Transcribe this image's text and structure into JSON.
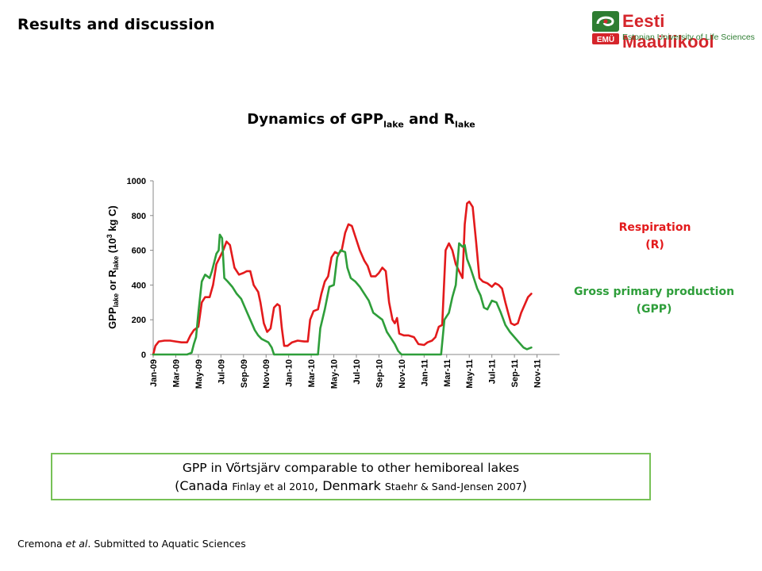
{
  "header": {
    "title": "Results and discussion"
  },
  "logo": {
    "name": "Eesti Maaülikool",
    "subtitle": "Estonian University of Life Sciences",
    "badge": "EMÜ"
  },
  "chart_title": {
    "main": "Dynamics of GPP",
    "sub1": "lake",
    "mid": " and R",
    "sub2": "lake"
  },
  "colors": {
    "respiration": "#e31a1c",
    "gpp": "#2e9e3a",
    "box_border": "#77c157"
  },
  "legend": {
    "respiration_line1": "Respiration",
    "respiration_line2": "(R)",
    "gpp_line1": "Gross primary production",
    "gpp_line2": "(GPP)"
  },
  "note": {
    "line1": "GPP in Võrtsjärv comparable to other hemiboreal lakes",
    "open": "(Canada ",
    "ref1": "Finlay et al 2010",
    "mid": ", Denmark ",
    "ref2": "Staehr & Sand-Jensen 2007",
    "close": ")"
  },
  "footer": {
    "prefix": "Cremona ",
    "etal": "et al",
    "suffix": ". Submitted to Aquatic Sciences"
  },
  "chart_data": {
    "type": "line",
    "title": "Dynamics of GPPlake and Rlake",
    "ylabel": "GPPlake or Rlake (10³ kg C)",
    "ylim": [
      0,
      1000
    ],
    "yticks": [
      0,
      200,
      400,
      600,
      800,
      1000
    ],
    "xlim": [
      0,
      36
    ],
    "xticks": [
      {
        "x": 0,
        "label": "Jan-09"
      },
      {
        "x": 2,
        "label": "Mar-09"
      },
      {
        "x": 4,
        "label": "May-09"
      },
      {
        "x": 6,
        "label": "Jul-09"
      },
      {
        "x": 8,
        "label": "Sep-09"
      },
      {
        "x": 10,
        "label": "Nov-09"
      },
      {
        "x": 12,
        "label": "Jan-10"
      },
      {
        "x": 14,
        "label": "Mar-10"
      },
      {
        "x": 16,
        "label": "May-10"
      },
      {
        "x": 18,
        "label": "Jul-10"
      },
      {
        "x": 20,
        "label": "Sep-10"
      },
      {
        "x": 22,
        "label": "Nov-10"
      },
      {
        "x": 24,
        "label": "Jan-11"
      },
      {
        "x": 26,
        "label": "Mar-11"
      },
      {
        "x": 28,
        "label": "May-11"
      },
      {
        "x": 30,
        "label": "Jul-11"
      },
      {
        "x": 32,
        "label": "Sep-11"
      },
      {
        "x": 34,
        "label": "Nov-11"
      }
    ],
    "series": [
      {
        "name": "Respiration (R)",
        "color": "#e31a1c",
        "points": [
          [
            0.0,
            0
          ],
          [
            0.2,
            50
          ],
          [
            0.5,
            75
          ],
          [
            1.0,
            80
          ],
          [
            1.5,
            80
          ],
          [
            2.0,
            75
          ],
          [
            2.5,
            70
          ],
          [
            3.0,
            70
          ],
          [
            3.3,
            110
          ],
          [
            3.6,
            140
          ],
          [
            4.0,
            160
          ],
          [
            4.3,
            300
          ],
          [
            4.6,
            330
          ],
          [
            5.0,
            330
          ],
          [
            5.3,
            400
          ],
          [
            5.6,
            520
          ],
          [
            5.9,
            560
          ],
          [
            6.2,
            600
          ],
          [
            6.5,
            650
          ],
          [
            6.8,
            630
          ],
          [
            7.2,
            500
          ],
          [
            7.6,
            460
          ],
          [
            8.0,
            470
          ],
          [
            8.3,
            480
          ],
          [
            8.6,
            480
          ],
          [
            8.9,
            400
          ],
          [
            9.3,
            360
          ],
          [
            9.5,
            300
          ],
          [
            9.8,
            180
          ],
          [
            10.1,
            130
          ],
          [
            10.4,
            150
          ],
          [
            10.7,
            270
          ],
          [
            11.0,
            290
          ],
          [
            11.2,
            280
          ],
          [
            11.4,
            150
          ],
          [
            11.6,
            50
          ],
          [
            11.9,
            50
          ],
          [
            12.3,
            70
          ],
          [
            12.8,
            80
          ],
          [
            13.4,
            75
          ],
          [
            13.7,
            75
          ],
          [
            13.9,
            200
          ],
          [
            14.2,
            250
          ],
          [
            14.6,
            260
          ],
          [
            14.9,
            350
          ],
          [
            15.2,
            420
          ],
          [
            15.5,
            450
          ],
          [
            15.8,
            560
          ],
          [
            16.1,
            590
          ],
          [
            16.4,
            580
          ],
          [
            16.7,
            600
          ],
          [
            17.0,
            700
          ],
          [
            17.3,
            750
          ],
          [
            17.6,
            740
          ],
          [
            17.9,
            680
          ],
          [
            18.3,
            600
          ],
          [
            18.7,
            540
          ],
          [
            19.0,
            510
          ],
          [
            19.3,
            450
          ],
          [
            19.7,
            450
          ],
          [
            20.0,
            470
          ],
          [
            20.3,
            500
          ],
          [
            20.6,
            480
          ],
          [
            20.9,
            300
          ],
          [
            21.2,
            200
          ],
          [
            21.4,
            180
          ],
          [
            21.6,
            210
          ],
          [
            21.8,
            120
          ],
          [
            22.2,
            110
          ],
          [
            22.6,
            110
          ],
          [
            23.1,
            100
          ],
          [
            23.5,
            60
          ],
          [
            24.0,
            55
          ],
          [
            24.3,
            70
          ],
          [
            24.7,
            80
          ],
          [
            25.0,
            100
          ],
          [
            25.3,
            160
          ],
          [
            25.6,
            170
          ],
          [
            25.9,
            600
          ],
          [
            26.2,
            640
          ],
          [
            26.5,
            600
          ],
          [
            26.8,
            520
          ],
          [
            27.1,
            480
          ],
          [
            27.4,
            440
          ],
          [
            27.6,
            750
          ],
          [
            27.8,
            870
          ],
          [
            28.0,
            880
          ],
          [
            28.3,
            850
          ],
          [
            28.6,
            650
          ],
          [
            28.9,
            440
          ],
          [
            29.2,
            420
          ],
          [
            29.6,
            410
          ],
          [
            30.0,
            390
          ],
          [
            30.3,
            410
          ],
          [
            30.6,
            400
          ],
          [
            30.9,
            380
          ],
          [
            31.2,
            300
          ],
          [
            31.4,
            250
          ],
          [
            31.7,
            180
          ],
          [
            32.0,
            170
          ],
          [
            32.3,
            180
          ],
          [
            32.6,
            240
          ],
          [
            33.0,
            300
          ],
          [
            33.2,
            330
          ],
          [
            33.5,
            350
          ]
        ]
      },
      {
        "name": "Gross primary production (GPP)",
        "color": "#2e9e3a",
        "points": [
          [
            0.0,
            0
          ],
          [
            1.0,
            0
          ],
          [
            2.0,
            0
          ],
          [
            3.0,
            0
          ],
          [
            3.4,
            10
          ],
          [
            3.6,
            60
          ],
          [
            3.8,
            100
          ],
          [
            4.0,
            240
          ],
          [
            4.3,
            420
          ],
          [
            4.6,
            460
          ],
          [
            5.0,
            440
          ],
          [
            5.2,
            480
          ],
          [
            5.6,
            580
          ],
          [
            5.8,
            600
          ],
          [
            5.9,
            690
          ],
          [
            6.1,
            670
          ],
          [
            6.3,
            440
          ],
          [
            6.6,
            420
          ],
          [
            7.0,
            390
          ],
          [
            7.4,
            350
          ],
          [
            7.8,
            320
          ],
          [
            8.2,
            260
          ],
          [
            8.6,
            200
          ],
          [
            9.0,
            140
          ],
          [
            9.3,
            110
          ],
          [
            9.6,
            90
          ],
          [
            9.9,
            80
          ],
          [
            10.2,
            70
          ],
          [
            10.5,
            40
          ],
          [
            10.7,
            0
          ],
          [
            12.0,
            0
          ],
          [
            13.0,
            0
          ],
          [
            14.0,
            0
          ],
          [
            14.6,
            0
          ],
          [
            14.8,
            150
          ],
          [
            15.2,
            260
          ],
          [
            15.6,
            390
          ],
          [
            16.0,
            400
          ],
          [
            16.3,
            560
          ],
          [
            16.6,
            600
          ],
          [
            17.0,
            590
          ],
          [
            17.2,
            500
          ],
          [
            17.5,
            440
          ],
          [
            17.9,
            420
          ],
          [
            18.3,
            390
          ],
          [
            18.7,
            350
          ],
          [
            19.1,
            310
          ],
          [
            19.5,
            240
          ],
          [
            19.9,
            220
          ],
          [
            20.3,
            200
          ],
          [
            20.7,
            130
          ],
          [
            21.0,
            100
          ],
          [
            21.4,
            60
          ],
          [
            21.7,
            20
          ],
          [
            22.0,
            0
          ],
          [
            23.0,
            0
          ],
          [
            24.0,
            0
          ],
          [
            25.0,
            0
          ],
          [
            25.5,
            0
          ],
          [
            25.8,
            200
          ],
          [
            26.2,
            240
          ],
          [
            26.5,
            330
          ],
          [
            26.8,
            400
          ],
          [
            27.1,
            640
          ],
          [
            27.4,
            620
          ],
          [
            27.6,
            630
          ],
          [
            27.8,
            550
          ],
          [
            28.1,
            500
          ],
          [
            28.4,
            440
          ],
          [
            28.7,
            380
          ],
          [
            29.0,
            340
          ],
          [
            29.3,
            270
          ],
          [
            29.6,
            260
          ],
          [
            30.0,
            310
          ],
          [
            30.4,
            300
          ],
          [
            30.8,
            240
          ],
          [
            31.2,
            170
          ],
          [
            31.6,
            130
          ],
          [
            32.0,
            100
          ],
          [
            32.4,
            70
          ],
          [
            32.8,
            40
          ],
          [
            33.1,
            30
          ],
          [
            33.5,
            40
          ]
        ]
      }
    ]
  }
}
